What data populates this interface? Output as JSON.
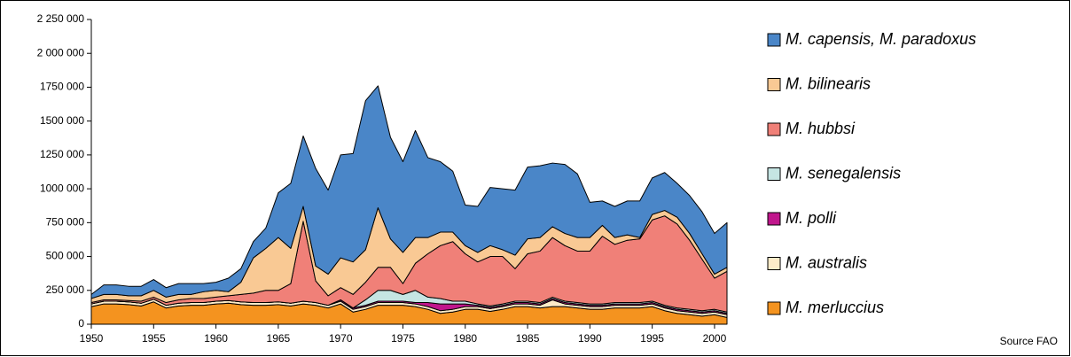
{
  "chart_data": {
    "type": "stacked_area",
    "x": [
      1950,
      1951,
      1952,
      1953,
      1954,
      1955,
      1956,
      1957,
      1958,
      1959,
      1960,
      1961,
      1962,
      1963,
      1964,
      1965,
      1966,
      1967,
      1968,
      1969,
      1970,
      1971,
      1972,
      1973,
      1974,
      1975,
      1976,
      1977,
      1978,
      1979,
      1980,
      1981,
      1982,
      1983,
      1984,
      1985,
      1986,
      1987,
      1988,
      1989,
      1990,
      1991,
      1992,
      1993,
      1994,
      1995,
      1996,
      1997,
      1998,
      1999,
      2000,
      2001
    ],
    "xlim": [
      1950,
      2001
    ],
    "xticks": [
      1950,
      1955,
      1960,
      1965,
      1970,
      1975,
      1980,
      1985,
      1990,
      1995,
      2000
    ],
    "ylim": [
      0,
      2250000
    ],
    "yticks": [
      0,
      {
        "value": 250000,
        "label": "250 000"
      },
      {
        "value": 500000,
        "label": "500 000"
      },
      {
        "value": 750000,
        "label": "750 000"
      },
      {
        "value": 1000000,
        "label": "1000 000"
      },
      {
        "value": 1250000,
        "label": "1250 000"
      },
      {
        "value": 1500000,
        "label": "1500 000"
      },
      {
        "value": 1750000,
        "label": "1750 000"
      },
      {
        "value": 2000000,
        "label": "2 000 000"
      },
      {
        "value": 2250000,
        "label": "2 250 000"
      }
    ],
    "series": [
      {
        "name": "M. merluccius",
        "color": "#f4931f",
        "values": [
          130000,
          150000,
          150000,
          145000,
          135000,
          165000,
          120000,
          135000,
          140000,
          140000,
          150000,
          155000,
          145000,
          140000,
          140000,
          145000,
          135000,
          150000,
          140000,
          120000,
          150000,
          90000,
          110000,
          140000,
          140000,
          140000,
          130000,
          110000,
          80000,
          90000,
          110000,
          110000,
          95000,
          110000,
          130000,
          130000,
          120000,
          130000,
          130000,
          120000,
          110000,
          110000,
          120000,
          120000,
          120000,
          130000,
          100000,
          80000,
          70000,
          60000,
          70000,
          50000
        ]
      },
      {
        "name": "M. australis",
        "color": "#fdebc8",
        "values": [
          20000,
          20000,
          20000,
          20000,
          20000,
          20000,
          20000,
          20000,
          20000,
          20000,
          20000,
          20000,
          20000,
          20000,
          20000,
          20000,
          20000,
          20000,
          20000,
          20000,
          20000,
          20000,
          20000,
          20000,
          20000,
          20000,
          20000,
          20000,
          20000,
          20000,
          20000,
          20000,
          20000,
          20000,
          20000,
          20000,
          20000,
          50000,
          20000,
          20000,
          20000,
          20000,
          20000,
          20000,
          20000,
          20000,
          20000,
          20000,
          20000,
          20000,
          20000,
          20000
        ]
      },
      {
        "name": "M. polli",
        "color": "#c0168c",
        "values": [
          0,
          0,
          0,
          0,
          0,
          0,
          0,
          0,
          0,
          0,
          0,
          0,
          0,
          0,
          0,
          0,
          0,
          0,
          0,
          0,
          10000,
          10000,
          10000,
          10000,
          10000,
          10000,
          10000,
          30000,
          50000,
          40000,
          20000,
          10000,
          10000,
          10000,
          10000,
          10000,
          10000,
          10000,
          10000,
          10000,
          10000,
          10000,
          10000,
          10000,
          10000,
          10000,
          10000,
          10000,
          10000,
          10000,
          10000,
          10000
        ]
      },
      {
        "name": "M. senegalensis",
        "color": "#c5e5e3",
        "values": [
          0,
          0,
          0,
          0,
          0,
          0,
          0,
          0,
          0,
          0,
          0,
          0,
          0,
          0,
          0,
          0,
          0,
          0,
          0,
          0,
          0,
          0,
          40000,
          80000,
          80000,
          50000,
          90000,
          40000,
          40000,
          20000,
          20000,
          10000,
          10000,
          10000,
          10000,
          10000,
          10000,
          10000,
          10000,
          10000,
          10000,
          10000,
          10000,
          10000,
          10000,
          10000,
          10000,
          10000,
          10000,
          10000,
          10000,
          10000
        ]
      },
      {
        "name": "M. hubbsi",
        "color": "#f08078",
        "values": [
          10000,
          10000,
          10000,
          10000,
          15000,
          15000,
          20000,
          25000,
          30000,
          30000,
          30000,
          35000,
          55000,
          70000,
          90000,
          85000,
          145000,
          590000,
          160000,
          70000,
          90000,
          100000,
          130000,
          170000,
          170000,
          80000,
          200000,
          320000,
          390000,
          440000,
          350000,
          310000,
          365000,
          350000,
          240000,
          350000,
          380000,
          440000,
          410000,
          380000,
          390000,
          500000,
          430000,
          460000,
          470000,
          600000,
          660000,
          620000,
          510000,
          380000,
          230000,
          300000
        ]
      },
      {
        "name": "M. bilinearis",
        "color": "#f9c994",
        "values": [
          30000,
          40000,
          40000,
          35000,
          40000,
          50000,
          40000,
          40000,
          30000,
          50000,
          50000,
          30000,
          90000,
          260000,
          310000,
          390000,
          260000,
          110000,
          110000,
          160000,
          220000,
          240000,
          240000,
          440000,
          210000,
          230000,
          190000,
          120000,
          100000,
          70000,
          60000,
          70000,
          80000,
          50000,
          100000,
          110000,
          100000,
          80000,
          90000,
          100000,
          100000,
          80000,
          50000,
          40000,
          10000,
          40000,
          40000,
          50000,
          50000,
          40000,
          30000,
          30000
        ]
      },
      {
        "name": "M. capensis, M. paradoxus",
        "color": "#4a86c8",
        "values": [
          30000,
          70000,
          70000,
          70000,
          70000,
          80000,
          70000,
          80000,
          80000,
          60000,
          60000,
          100000,
          100000,
          120000,
          150000,
          330000,
          480000,
          520000,
          720000,
          620000,
          760000,
          800000,
          1100000,
          900000,
          750000,
          670000,
          790000,
          590000,
          520000,
          450000,
          300000,
          340000,
          430000,
          450000,
          480000,
          530000,
          530000,
          470000,
          510000,
          470000,
          260000,
          180000,
          230000,
          250000,
          270000,
          270000,
          280000,
          250000,
          280000,
          310000,
          300000,
          330000
        ]
      }
    ],
    "annotation": "Source FAO"
  }
}
